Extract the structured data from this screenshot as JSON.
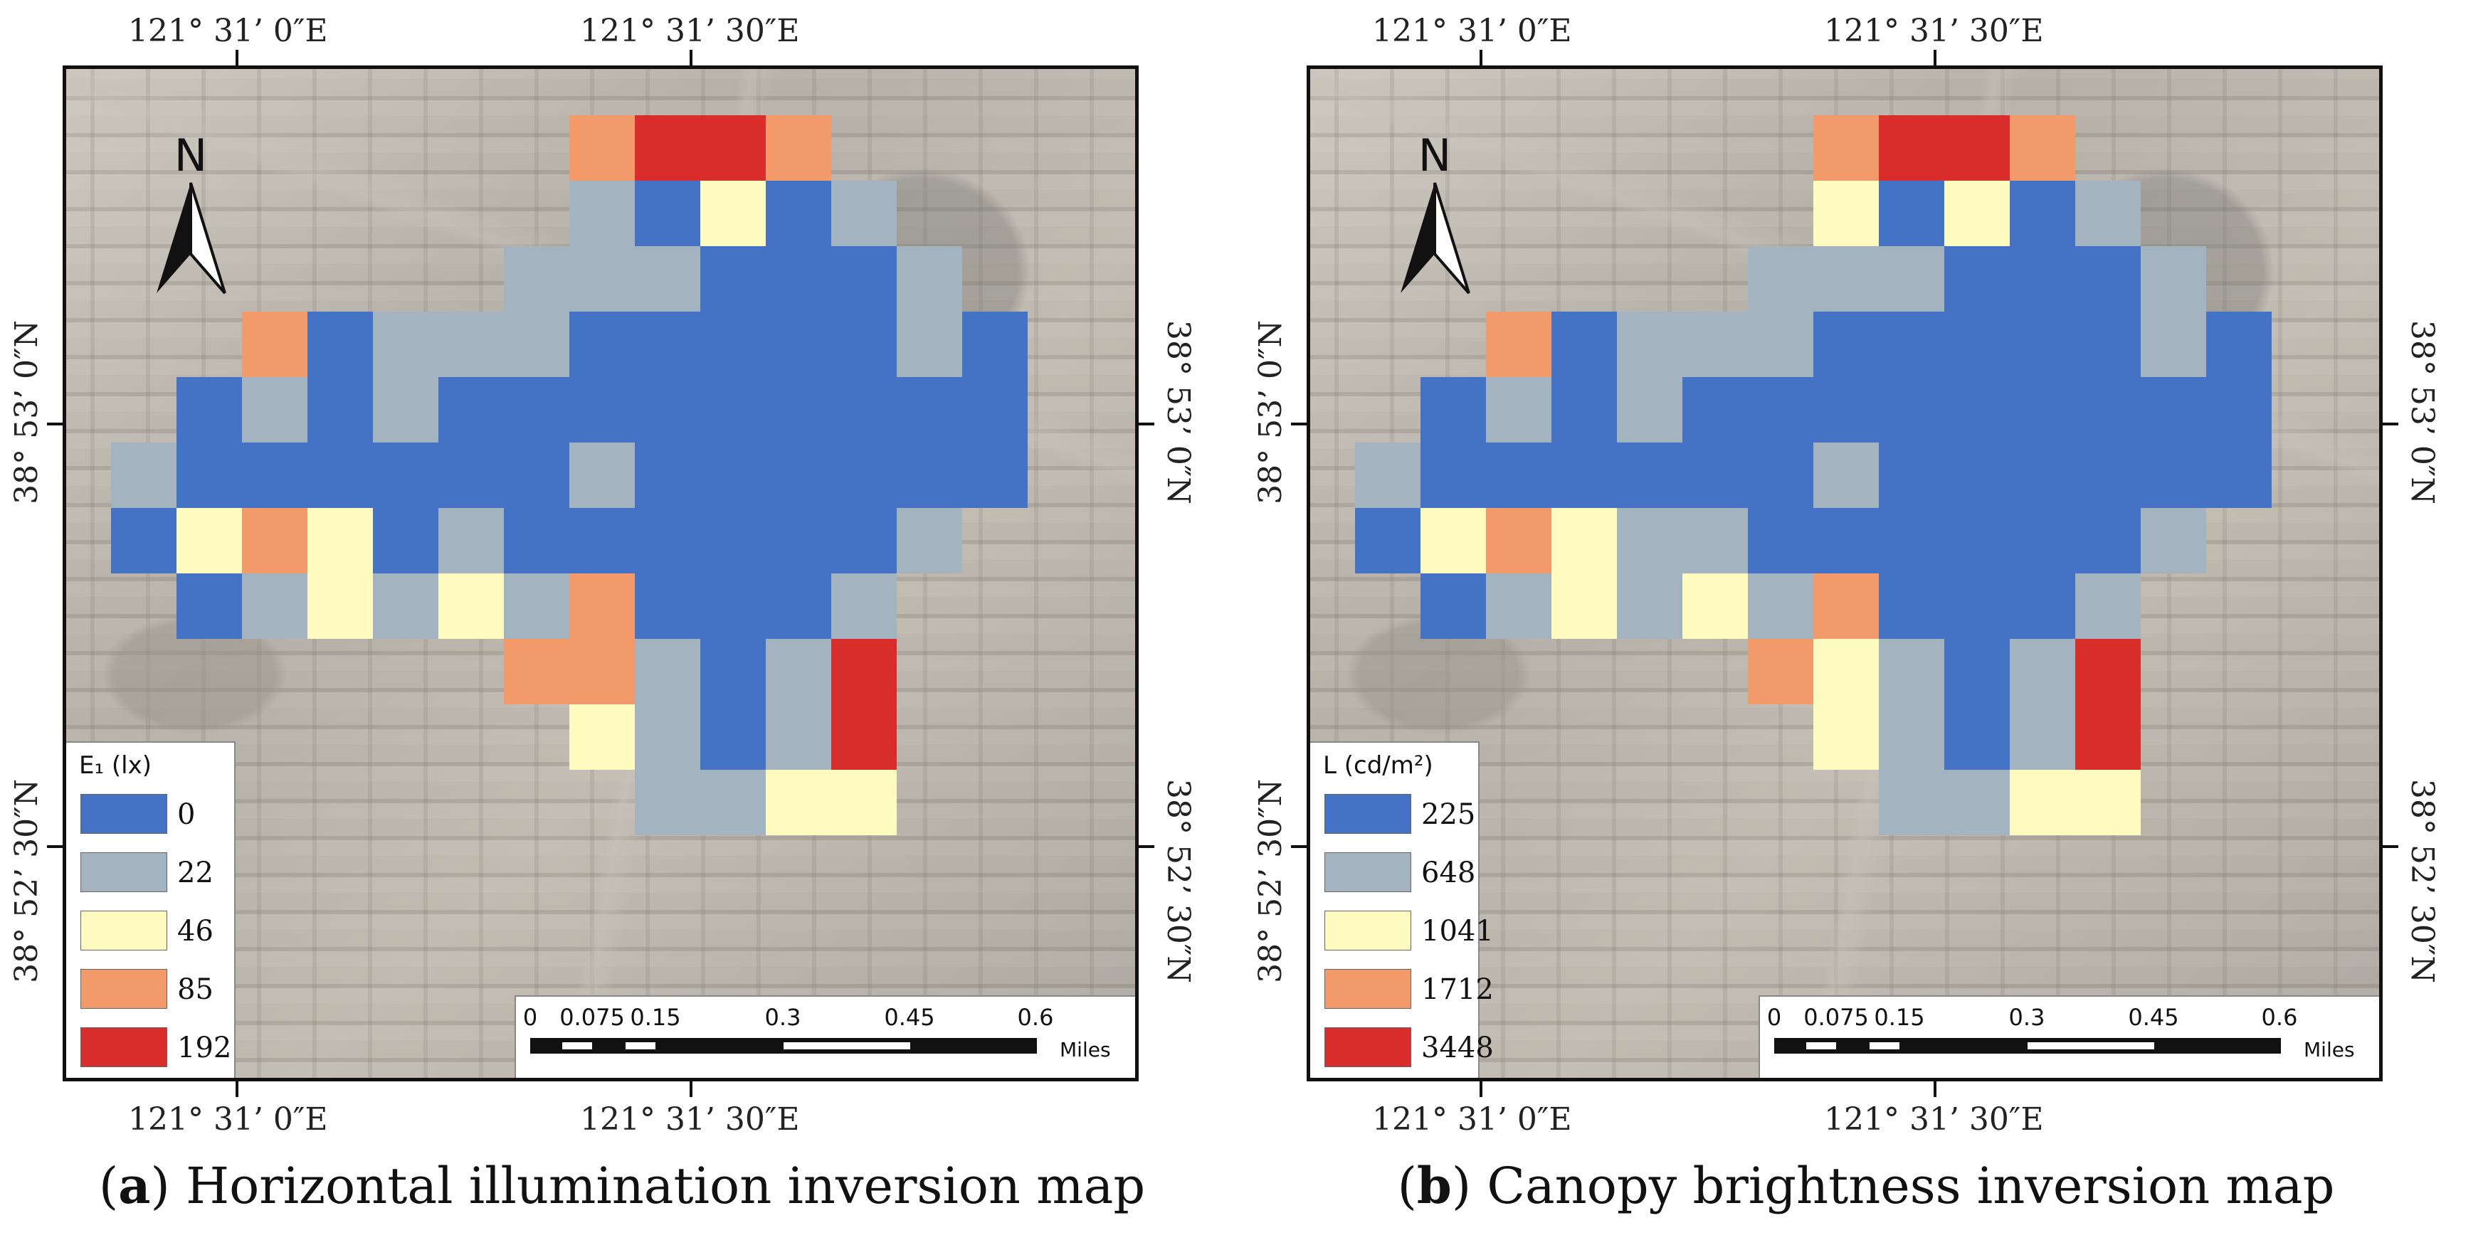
{
  "colors": {
    "c0": "#4472c4",
    "c1": "#a3b3c0",
    "c2": "#fffbc0",
    "c3": "#f39a6b",
    "c4": "#d92d2b",
    "north_arrow": "#111111"
  },
  "grid_cells": [
    [
      7,
      0,
      3
    ],
    [
      8,
      0,
      4
    ],
    [
      9,
      0,
      4
    ],
    [
      10,
      0,
      3
    ],
    [
      7,
      1,
      1
    ],
    [
      8,
      1,
      0
    ],
    [
      9,
      1,
      2
    ],
    [
      10,
      1,
      0
    ],
    [
      11,
      1,
      1
    ],
    [
      6,
      2,
      1
    ],
    [
      7,
      2,
      1
    ],
    [
      8,
      2,
      1
    ],
    [
      9,
      2,
      0
    ],
    [
      10,
      2,
      0
    ],
    [
      11,
      2,
      0
    ],
    [
      12,
      2,
      1
    ],
    [
      2,
      3,
      3
    ],
    [
      3,
      3,
      0
    ],
    [
      4,
      3,
      1
    ],
    [
      5,
      3,
      1
    ],
    [
      6,
      3,
      1
    ],
    [
      7,
      3,
      0
    ],
    [
      8,
      3,
      0
    ],
    [
      9,
      3,
      0
    ],
    [
      10,
      3,
      0
    ],
    [
      11,
      3,
      0
    ],
    [
      12,
      3,
      1
    ],
    [
      13,
      3,
      0
    ],
    [
      1,
      4,
      0
    ],
    [
      2,
      4,
      1
    ],
    [
      3,
      4,
      0
    ],
    [
      4,
      4,
      1
    ],
    [
      5,
      4,
      0
    ],
    [
      6,
      4,
      0
    ],
    [
      7,
      4,
      0
    ],
    [
      8,
      4,
      0
    ],
    [
      9,
      4,
      0
    ],
    [
      10,
      4,
      0
    ],
    [
      11,
      4,
      0
    ],
    [
      12,
      4,
      0
    ],
    [
      13,
      4,
      0
    ],
    [
      0,
      5,
      1
    ],
    [
      1,
      5,
      0
    ],
    [
      2,
      5,
      0
    ],
    [
      3,
      5,
      0
    ],
    [
      4,
      5,
      0
    ],
    [
      5,
      5,
      0
    ],
    [
      6,
      5,
      0
    ],
    [
      7,
      5,
      1
    ],
    [
      8,
      5,
      0
    ],
    [
      9,
      5,
      0
    ],
    [
      10,
      5,
      0
    ],
    [
      11,
      5,
      0
    ],
    [
      12,
      5,
      0
    ],
    [
      13,
      5,
      0
    ],
    [
      0,
      6,
      0
    ],
    [
      1,
      6,
      2
    ],
    [
      2,
      6,
      3
    ],
    [
      3,
      6,
      2
    ],
    [
      4,
      6,
      0
    ],
    [
      5,
      6,
      1
    ],
    [
      6,
      6,
      0
    ],
    [
      7,
      6,
      0
    ],
    [
      8,
      6,
      0
    ],
    [
      9,
      6,
      0
    ],
    [
      10,
      6,
      0
    ],
    [
      11,
      6,
      0
    ],
    [
      12,
      6,
      1
    ],
    [
      1,
      7,
      0
    ],
    [
      2,
      7,
      1
    ],
    [
      3,
      7,
      2
    ],
    [
      4,
      7,
      1
    ],
    [
      5,
      7,
      2
    ],
    [
      6,
      7,
      1
    ],
    [
      7,
      7,
      3
    ],
    [
      8,
      7,
      0
    ],
    [
      9,
      7,
      0
    ],
    [
      10,
      7,
      0
    ],
    [
      11,
      7,
      1
    ],
    [
      6,
      8,
      3
    ],
    [
      7,
      8,
      3
    ],
    [
      8,
      8,
      1
    ],
    [
      9,
      8,
      0
    ],
    [
      10,
      8,
      1
    ],
    [
      11,
      8,
      4
    ],
    [
      7,
      9,
      2
    ],
    [
      8,
      9,
      1
    ],
    [
      9,
      9,
      0
    ],
    [
      10,
      9,
      1
    ],
    [
      11,
      9,
      4
    ],
    [
      8,
      10,
      1
    ],
    [
      9,
      10,
      1
    ],
    [
      10,
      10,
      2
    ],
    [
      11,
      10,
      2
    ]
  ],
  "grid_cells_b": [
    [
      7,
      0,
      3
    ],
    [
      8,
      0,
      4
    ],
    [
      9,
      0,
      4
    ],
    [
      10,
      0,
      3
    ],
    [
      7,
      1,
      2
    ],
    [
      8,
      1,
      0
    ],
    [
      9,
      1,
      2
    ],
    [
      10,
      1,
      0
    ],
    [
      11,
      1,
      1
    ],
    [
      6,
      2,
      1
    ],
    [
      7,
      2,
      1
    ],
    [
      8,
      2,
      1
    ],
    [
      9,
      2,
      0
    ],
    [
      10,
      2,
      0
    ],
    [
      11,
      2,
      0
    ],
    [
      12,
      2,
      1
    ],
    [
      2,
      3,
      3
    ],
    [
      3,
      3,
      0
    ],
    [
      4,
      3,
      1
    ],
    [
      5,
      3,
      1
    ],
    [
      6,
      3,
      1
    ],
    [
      7,
      3,
      0
    ],
    [
      8,
      3,
      0
    ],
    [
      9,
      3,
      0
    ],
    [
      10,
      3,
      0
    ],
    [
      11,
      3,
      0
    ],
    [
      12,
      3,
      1
    ],
    [
      13,
      3,
      0
    ],
    [
      1,
      4,
      0
    ],
    [
      2,
      4,
      1
    ],
    [
      3,
      4,
      0
    ],
    [
      4,
      4,
      1
    ],
    [
      5,
      4,
      0
    ],
    [
      6,
      4,
      0
    ],
    [
      7,
      4,
      0
    ],
    [
      8,
      4,
      0
    ],
    [
      9,
      4,
      0
    ],
    [
      10,
      4,
      0
    ],
    [
      11,
      4,
      0
    ],
    [
      12,
      4,
      0
    ],
    [
      13,
      4,
      0
    ],
    [
      0,
      5,
      1
    ],
    [
      1,
      5,
      0
    ],
    [
      2,
      5,
      0
    ],
    [
      3,
      5,
      0
    ],
    [
      4,
      5,
      0
    ],
    [
      5,
      5,
      0
    ],
    [
      6,
      5,
      0
    ],
    [
      7,
      5,
      1
    ],
    [
      8,
      5,
      0
    ],
    [
      9,
      5,
      0
    ],
    [
      10,
      5,
      0
    ],
    [
      11,
      5,
      0
    ],
    [
      12,
      5,
      0
    ],
    [
      13,
      5,
      0
    ],
    [
      0,
      6,
      0
    ],
    [
      1,
      6,
      2
    ],
    [
      2,
      6,
      3
    ],
    [
      3,
      6,
      2
    ],
    [
      4,
      6,
      1
    ],
    [
      5,
      6,
      1
    ],
    [
      6,
      6,
      0
    ],
    [
      7,
      6,
      0
    ],
    [
      8,
      6,
      0
    ],
    [
      9,
      6,
      0
    ],
    [
      10,
      6,
      0
    ],
    [
      11,
      6,
      0
    ],
    [
      12,
      6,
      1
    ],
    [
      1,
      7,
      0
    ],
    [
      2,
      7,
      1
    ],
    [
      3,
      7,
      2
    ],
    [
      4,
      7,
      1
    ],
    [
      5,
      7,
      2
    ],
    [
      6,
      7,
      1
    ],
    [
      7,
      7,
      3
    ],
    [
      8,
      7,
      0
    ],
    [
      9,
      7,
      0
    ],
    [
      10,
      7,
      0
    ],
    [
      11,
      7,
      1
    ],
    [
      6,
      8,
      3
    ],
    [
      7,
      8,
      2
    ],
    [
      8,
      8,
      1
    ],
    [
      9,
      8,
      0
    ],
    [
      10,
      8,
      1
    ],
    [
      11,
      8,
      4
    ],
    [
      7,
      9,
      2
    ],
    [
      8,
      9,
      1
    ],
    [
      9,
      9,
      0
    ],
    [
      10,
      9,
      1
    ],
    [
      11,
      9,
      4
    ],
    [
      8,
      10,
      1
    ],
    [
      9,
      10,
      1
    ],
    [
      10,
      10,
      2
    ],
    [
      11,
      10,
      2
    ]
  ],
  "panel_a": {
    "north_label": "N",
    "legend_title": "E₁ (lx)",
    "legend_values": [
      "0",
      "22",
      "46",
      "85",
      "192"
    ],
    "caption_letter": "a",
    "caption_text": "Horizontal illumination inversion map"
  },
  "panel_b": {
    "north_label": "N",
    "legend_title": "L  (cd/m²)",
    "legend_values": [
      "225",
      "648",
      "1041",
      "1712",
      "3448"
    ],
    "caption_letter": "b",
    "caption_text": "Canopy brightness inversion map"
  },
  "coords": {
    "lon_left": "121°  31’ 0″E",
    "lon_right": "121°  31’ 30″E",
    "lat_upper": "38°  53’ 0″N",
    "lat_lower": "38°  52’ 30″N"
  },
  "scale": {
    "labels": [
      "0",
      "0.075",
      "0.15",
      "0.3",
      "0.45",
      "0.6"
    ],
    "unit": "Miles"
  }
}
